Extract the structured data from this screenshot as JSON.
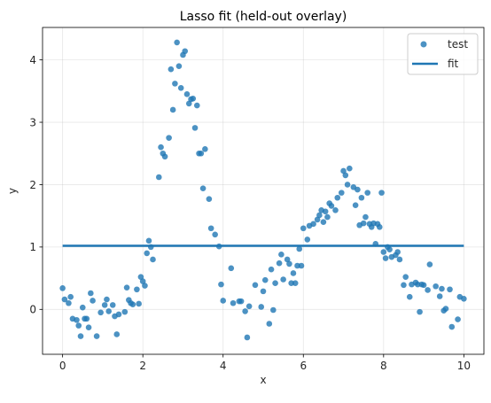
{
  "chart_data": {
    "type": "scatter",
    "title": "Lasso fit (held-out overlay)",
    "xlabel": "x",
    "ylabel": "y",
    "xlim": [
      -0.5,
      10.5
    ],
    "ylim": [
      -0.72,
      4.52
    ],
    "xticks": [
      0,
      2,
      4,
      6,
      8,
      10
    ],
    "yticks": [
      0,
      1,
      2,
      3,
      4
    ],
    "grid": true,
    "legend_position": "top-right",
    "colors": {
      "test": "#1f77b4",
      "fit": "#1f77b4"
    },
    "series": [
      {
        "name": "test",
        "kind": "scatter",
        "points": [
          [
            0.0,
            0.34
          ],
          [
            0.05,
            0.16
          ],
          [
            0.15,
            0.1
          ],
          [
            0.2,
            0.2
          ],
          [
            0.25,
            -0.15
          ],
          [
            0.35,
            -0.17
          ],
          [
            0.4,
            -0.26
          ],
          [
            0.45,
            -0.43
          ],
          [
            0.5,
            0.03
          ],
          [
            0.55,
            -0.15
          ],
          [
            0.6,
            -0.15
          ],
          [
            0.65,
            -0.29
          ],
          [
            0.7,
            0.26
          ],
          [
            0.75,
            0.14
          ],
          [
            0.85,
            -0.43
          ],
          [
            0.95,
            -0.05
          ],
          [
            1.05,
            0.07
          ],
          [
            1.1,
            0.16
          ],
          [
            1.15,
            -0.03
          ],
          [
            1.25,
            0.07
          ],
          [
            1.3,
            -0.11
          ],
          [
            1.35,
            -0.4
          ],
          [
            1.4,
            -0.08
          ],
          [
            1.55,
            -0.04
          ],
          [
            1.6,
            0.35
          ],
          [
            1.65,
            0.15
          ],
          [
            1.7,
            0.1
          ],
          [
            1.75,
            0.08
          ],
          [
            1.85,
            0.32
          ],
          [
            1.9,
            0.09
          ],
          [
            1.95,
            0.52
          ],
          [
            2.0,
            0.45
          ],
          [
            2.05,
            0.38
          ],
          [
            2.1,
            0.9
          ],
          [
            2.15,
            1.1
          ],
          [
            2.2,
            1.0
          ],
          [
            2.25,
            0.8
          ],
          [
            2.4,
            2.12
          ],
          [
            2.45,
            2.6
          ],
          [
            2.5,
            2.5
          ],
          [
            2.55,
            2.45
          ],
          [
            2.65,
            2.75
          ],
          [
            2.7,
            3.85
          ],
          [
            2.75,
            3.2
          ],
          [
            2.8,
            3.62
          ],
          [
            2.85,
            4.28
          ],
          [
            2.9,
            3.9
          ],
          [
            2.95,
            3.55
          ],
          [
            3.0,
            4.08
          ],
          [
            3.05,
            4.14
          ],
          [
            3.1,
            3.45
          ],
          [
            3.15,
            3.3
          ],
          [
            3.2,
            3.37
          ],
          [
            3.25,
            3.38
          ],
          [
            3.3,
            2.91
          ],
          [
            3.35,
            3.27
          ],
          [
            3.4,
            2.5
          ],
          [
            3.45,
            2.5
          ],
          [
            3.5,
            1.94
          ],
          [
            3.55,
            2.57
          ],
          [
            3.65,
            1.77
          ],
          [
            3.7,
            1.3
          ],
          [
            3.8,
            1.2
          ],
          [
            3.9,
            1.01
          ],
          [
            3.95,
            0.4
          ],
          [
            4.0,
            0.14
          ],
          [
            4.2,
            0.66
          ],
          [
            4.25,
            0.1
          ],
          [
            4.4,
            0.13
          ],
          [
            4.45,
            0.13
          ],
          [
            4.55,
            -0.03
          ],
          [
            4.6,
            -0.45
          ],
          [
            4.65,
            0.05
          ],
          [
            4.8,
            0.39
          ],
          [
            4.95,
            0.04
          ],
          [
            5.0,
            0.29
          ],
          [
            5.05,
            0.47
          ],
          [
            5.15,
            -0.23
          ],
          [
            5.2,
            0.64
          ],
          [
            5.25,
            -0.01
          ],
          [
            5.3,
            0.42
          ],
          [
            5.4,
            0.74
          ],
          [
            5.45,
            0.88
          ],
          [
            5.5,
            0.48
          ],
          [
            5.6,
            0.8
          ],
          [
            5.65,
            0.73
          ],
          [
            5.7,
            0.42
          ],
          [
            5.75,
            0.58
          ],
          [
            5.8,
            0.42
          ],
          [
            5.85,
            0.7
          ],
          [
            5.9,
            0.97
          ],
          [
            5.95,
            0.7
          ],
          [
            6.0,
            1.3
          ],
          [
            6.1,
            1.12
          ],
          [
            6.15,
            1.34
          ],
          [
            6.25,
            1.37
          ],
          [
            6.35,
            1.44
          ],
          [
            6.4,
            1.51
          ],
          [
            6.45,
            1.59
          ],
          [
            6.5,
            1.4
          ],
          [
            6.55,
            1.57
          ],
          [
            6.6,
            1.48
          ],
          [
            6.65,
            1.7
          ],
          [
            6.7,
            1.66
          ],
          [
            6.8,
            1.59
          ],
          [
            6.85,
            1.79
          ],
          [
            6.95,
            1.87
          ],
          [
            7.0,
            2.22
          ],
          [
            7.05,
            2.15
          ],
          [
            7.1,
            2.0
          ],
          [
            7.15,
            2.26
          ],
          [
            7.25,
            1.96
          ],
          [
            7.3,
            1.67
          ],
          [
            7.35,
            1.92
          ],
          [
            7.4,
            1.35
          ],
          [
            7.45,
            1.79
          ],
          [
            7.5,
            1.38
          ],
          [
            7.55,
            1.48
          ],
          [
            7.6,
            1.87
          ],
          [
            7.65,
            1.37
          ],
          [
            7.7,
            1.32
          ],
          [
            7.75,
            1.38
          ],
          [
            7.8,
            1.05
          ],
          [
            7.85,
            1.37
          ],
          [
            7.9,
            1.32
          ],
          [
            7.95,
            1.87
          ],
          [
            8.0,
            0.92
          ],
          [
            8.05,
            0.82
          ],
          [
            8.1,
            1.0
          ],
          [
            8.15,
            0.96
          ],
          [
            8.2,
            0.84
          ],
          [
            8.3,
            0.87
          ],
          [
            8.35,
            0.92
          ],
          [
            8.4,
            0.8
          ],
          [
            8.5,
            0.39
          ],
          [
            8.55,
            0.52
          ],
          [
            8.65,
            0.2
          ],
          [
            8.7,
            0.4
          ],
          [
            8.8,
            0.43
          ],
          [
            8.85,
            0.4
          ],
          [
            8.9,
            -0.04
          ],
          [
            8.95,
            0.4
          ],
          [
            9.0,
            0.39
          ],
          [
            9.1,
            0.31
          ],
          [
            9.15,
            0.72
          ],
          [
            9.3,
            0.37
          ],
          [
            9.4,
            0.21
          ],
          [
            9.45,
            0.33
          ],
          [
            9.5,
            -0.02
          ],
          [
            9.55,
            0.01
          ],
          [
            9.65,
            0.32
          ],
          [
            9.7,
            -0.28
          ],
          [
            9.85,
            -0.16
          ],
          [
            9.9,
            0.2
          ],
          [
            10.0,
            0.17
          ]
        ]
      },
      {
        "name": "fit",
        "kind": "line",
        "points": [
          [
            0,
            1.02
          ],
          [
            10,
            1.02
          ]
        ]
      }
    ]
  }
}
